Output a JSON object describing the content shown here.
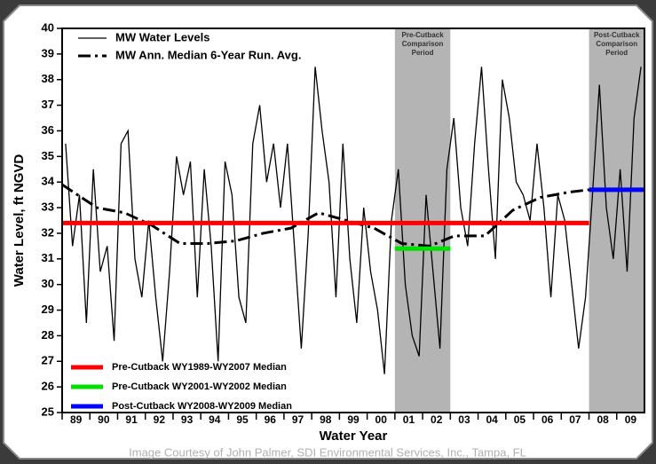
{
  "chart_data": {
    "type": "line",
    "xlabel": "Water Year",
    "ylabel": "Water Level, ft NGVD",
    "categories": [
      "89",
      "90",
      "91",
      "92",
      "93",
      "94",
      "95",
      "96",
      "97",
      "98",
      "99",
      "00",
      "01",
      "02",
      "03",
      "04",
      "05",
      "06",
      "07",
      "08",
      "09"
    ],
    "xlim": [
      1988.75,
      2009.75
    ],
    "ylim": [
      25,
      40
    ],
    "yticks": [
      25,
      26,
      27,
      28,
      29,
      30,
      31,
      32,
      33,
      34,
      35,
      36,
      37,
      38,
      39,
      40
    ],
    "regions": [
      {
        "label_lines": [
          "Pre-Cutback",
          "Comparison",
          "Period"
        ],
        "x": [
          2000.75,
          2002.75
        ],
        "color": "#b4b4b4"
      },
      {
        "label_lines": [
          "Post-Cutback",
          "Comparison",
          "Period"
        ],
        "x": [
          2007.75,
          2009.75
        ],
        "color": "#b4b4b4"
      }
    ],
    "series": [
      {
        "name": "MW Water Levels",
        "color": "#000000",
        "style": "solid",
        "legend": "top",
        "x": [
          1988.875,
          1989.125,
          1989.375,
          1989.625,
          1989.875,
          1990.125,
          1990.375,
          1990.625,
          1990.875,
          1991.125,
          1991.375,
          1991.625,
          1991.875,
          1992.125,
          1992.375,
          1992.625,
          1992.875,
          1993.125,
          1993.375,
          1993.625,
          1993.875,
          1994.125,
          1994.375,
          1994.625,
          1994.875,
          1995.125,
          1995.375,
          1995.625,
          1995.875,
          1996.125,
          1996.375,
          1996.625,
          1996.875,
          1997.125,
          1997.375,
          1997.625,
          1997.875,
          1998.125,
          1998.375,
          1998.625,
          1998.875,
          1999.125,
          1999.375,
          1999.625,
          1999.875,
          2000.125,
          2000.375,
          2000.625,
          2000.875,
          2001.125,
          2001.375,
          2001.625,
          2001.875,
          2002.125,
          2002.375,
          2002.625,
          2002.875,
          2003.125,
          2003.375,
          2003.625,
          2003.875,
          2004.125,
          2004.375,
          2004.625,
          2004.875,
          2005.125,
          2005.375,
          2005.625,
          2005.875,
          2006.125,
          2006.375,
          2006.625,
          2006.875,
          2007.125,
          2007.375,
          2007.625,
          2007.875,
          2008.125,
          2008.375,
          2008.625,
          2008.875,
          2009.125,
          2009.375,
          2009.625
        ],
        "values": [
          35.5,
          31.5,
          33.5,
          28.5,
          34.5,
          30.5,
          31.5,
          27.8,
          35.5,
          36.0,
          31.0,
          29.5,
          32.5,
          29.5,
          27.0,
          30.5,
          35.0,
          33.5,
          34.8,
          29.5,
          34.5,
          31.5,
          27.0,
          34.8,
          33.5,
          29.5,
          28.5,
          35.5,
          37.0,
          34.0,
          35.5,
          33.0,
          35.5,
          31.5,
          27.5,
          32.0,
          38.5,
          36.0,
          34.0,
          29.5,
          35.5,
          31.0,
          28.5,
          33.0,
          30.5,
          29.0,
          26.5,
          32.5,
          34.5,
          30.0,
          28.0,
          27.2,
          33.5,
          30.5,
          27.5,
          34.5,
          36.5,
          33.0,
          31.5,
          35.5,
          38.5,
          34.5,
          31.0,
          38.0,
          36.5,
          34.0,
          33.5,
          32.5,
          35.5,
          33.0,
          29.5,
          33.5,
          32.5,
          30.0,
          27.5,
          29.5,
          33.5,
          37.8,
          33.0,
          31.0,
          34.5,
          30.5,
          36.5,
          38.5
        ]
      },
      {
        "name": "MW Ann. Median 6-Year Run. Avg.",
        "color": "#000000",
        "style": "dashdot",
        "legend": "top",
        "x": [
          1988.75,
          1990,
          1991,
          1992,
          1993,
          1994,
          1995,
          1996,
          1997,
          1998,
          1999,
          2000,
          2001,
          2002,
          2002.9,
          2004,
          2005,
          2006,
          2007,
          2007.75
        ],
        "values": [
          33.9,
          33.0,
          32.8,
          32.3,
          31.6,
          31.6,
          31.7,
          32.0,
          32.2,
          32.8,
          32.5,
          32.2,
          31.6,
          31.5,
          31.9,
          31.9,
          32.9,
          33.4,
          33.6,
          33.7
        ]
      },
      {
        "name": "Pre-Cutback WY1989-WY2007 Median",
        "color": "#ff0000",
        "style": "thick",
        "legend": "bottom",
        "x": [
          1988.75,
          2007.75
        ],
        "values": [
          32.4,
          32.4
        ]
      },
      {
        "name": "Pre-Cutback WY2001-WY2002 Median",
        "color": "#00e000",
        "style": "thick",
        "legend": "bottom",
        "x": [
          2000.75,
          2002.75
        ],
        "values": [
          31.4,
          31.4
        ]
      },
      {
        "name": "Post-Cutback WY2008-WY2009 Median",
        "color": "#0000ff",
        "style": "thick",
        "legend": "bottom",
        "x": [
          2007.75,
          2009.75
        ],
        "values": [
          33.7,
          33.7
        ]
      }
    ],
    "credit": "Image Courtesy of John Palmer, SDI Environmental Services, Inc., Tampa, FL"
  }
}
